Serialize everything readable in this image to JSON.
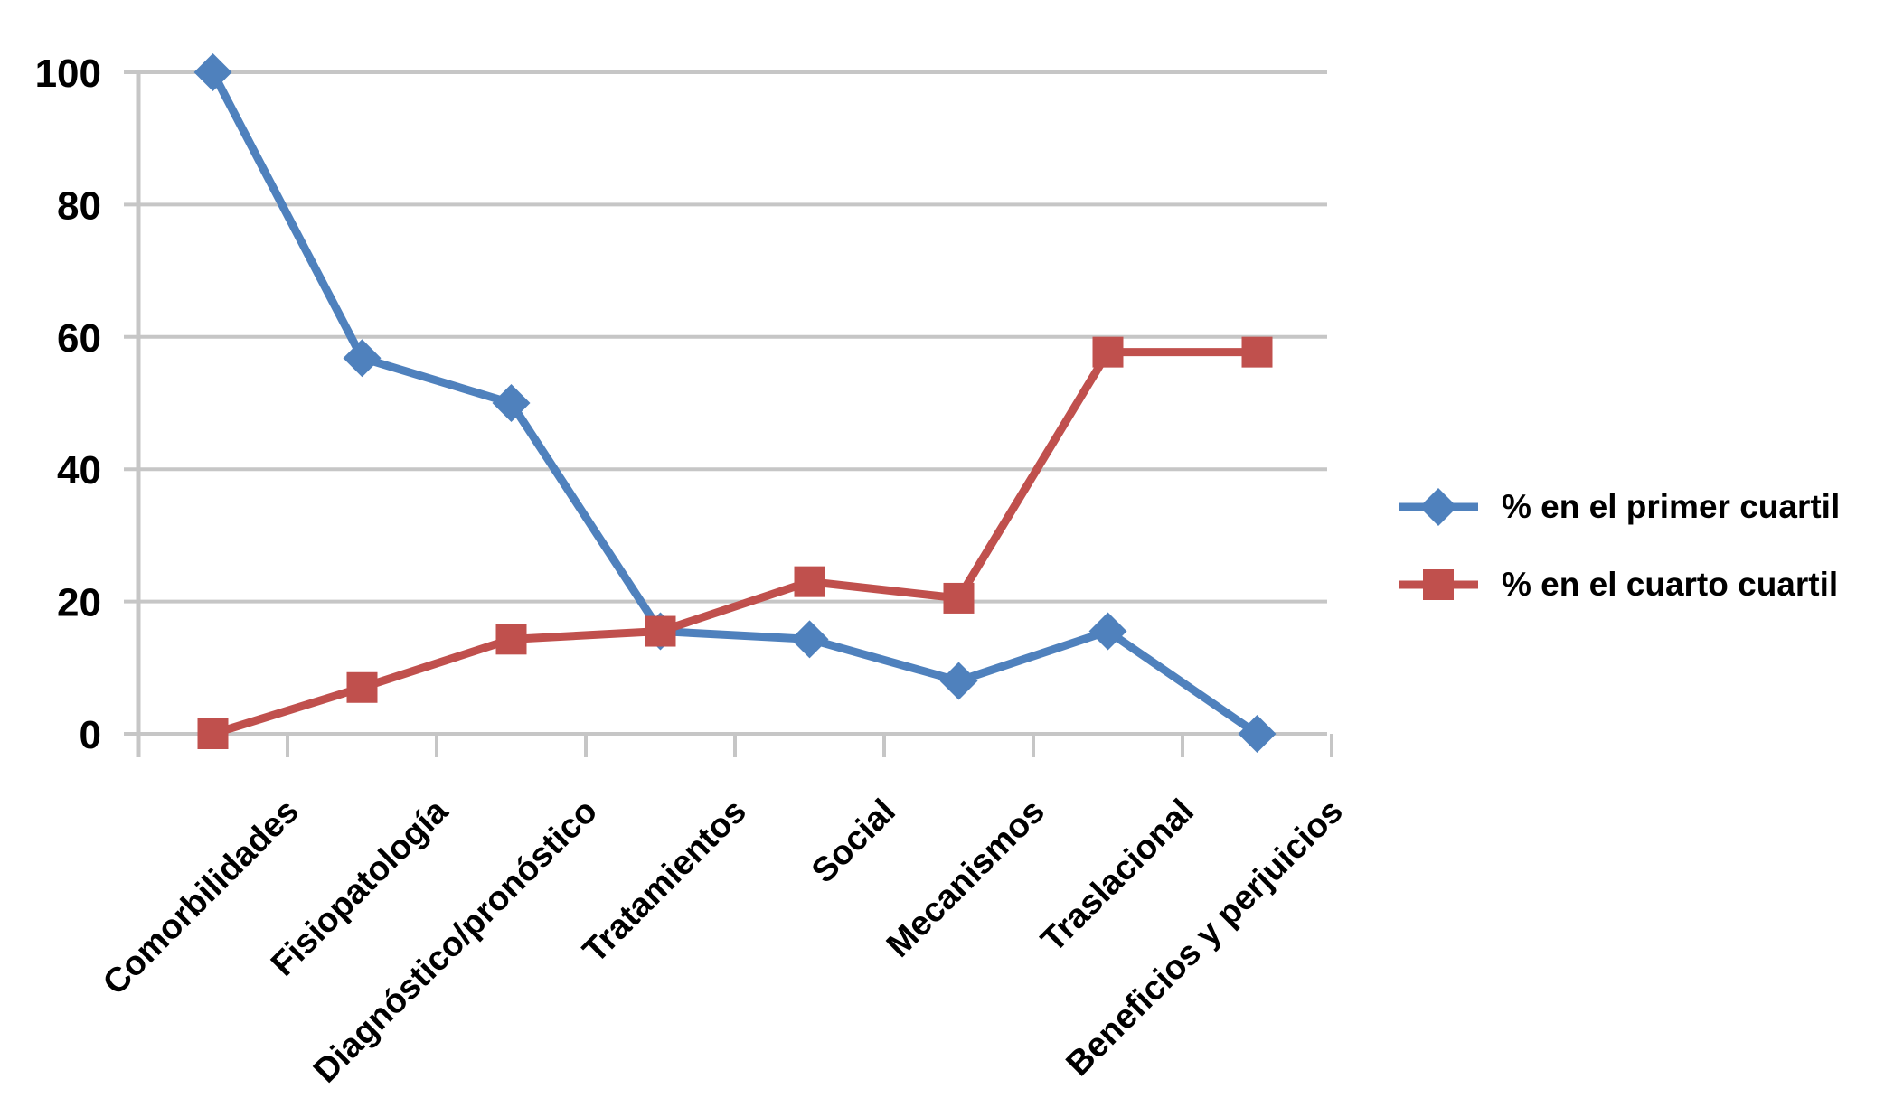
{
  "chart_data": {
    "type": "line",
    "title": "",
    "xlabel": "",
    "ylabel": "",
    "categories": [
      "Comorbilidades",
      "Fisiopatología",
      "Diagnóstico/pronóstico",
      "Tratamientos",
      "Social",
      "Mecanismos",
      "Traslacional",
      "Beneficios y perjuicios"
    ],
    "series": [
      {
        "name": "% en el primer cuartil",
        "marker": "diamond",
        "color": "#4F81BD",
        "values": [
          100,
          56.8,
          50,
          15.5,
          14.3,
          8,
          15.5,
          0
        ]
      },
      {
        "name": "% en el cuarto cuartil",
        "marker": "square",
        "color": "#C0504D",
        "values": [
          0,
          7,
          14.3,
          15.5,
          23,
          20.5,
          57.7,
          57.7
        ]
      }
    ],
    "ylim": [
      0,
      100
    ],
    "yticks": [
      0,
      20,
      40,
      60,
      80,
      100
    ],
    "grid": "horizontal",
    "grid_color": "#C6C6C6",
    "axis_color": "#C6C6C6",
    "text_color": "#000000",
    "legend_position": "right"
  }
}
